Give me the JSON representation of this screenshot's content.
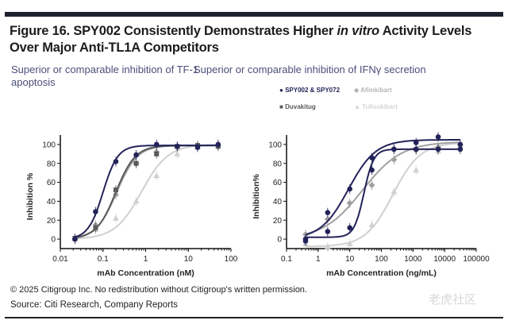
{
  "header": {
    "title_pre": "Figure 16. SPY002 Consistently Demonstrates Higher ",
    "title_italic": "in vitro",
    "title_post": " Activity Levels",
    "title_line2": "Over Major Anti-TL1A Competitors"
  },
  "subtitles": {
    "left_line1": "Superior or comparable inhibition of TF-1",
    "left_line2": "apoptosis",
    "right": "Superior or comparable inhibition of IFNγ secretion"
  },
  "legend": [
    {
      "label": "SPY002 & SPY072",
      "color": "#23235a",
      "marker": "circle"
    },
    {
      "label": "Afimkibart",
      "color": "#a0a0a0",
      "marker": "diamond"
    },
    {
      "label": "Duvakitug",
      "color": "#5a5a5a",
      "marker": "square"
    },
    {
      "label": "Tulisokibart",
      "color": "#d0d0d0",
      "marker": "triangle"
    }
  ],
  "footer": {
    "copyright": "© 2025 Citigroup Inc. No redistribution without Citigroup's written permission.",
    "source": "Source: Citi Research, Company Reports"
  },
  "watermark": "老虎社区",
  "chart_data": [
    {
      "type": "scatter",
      "xscale": "log",
      "xlim": [
        0.01,
        100
      ],
      "ylim": [
        -10,
        110
      ],
      "xlabel": "mAb Concentration (nM)",
      "ylabel": "Inhibition %",
      "xticks": [
        "0.01",
        "0.1",
        "1",
        "10",
        "100"
      ],
      "xtick_values": [
        0.01,
        0.1,
        1,
        10,
        100
      ],
      "yticks": [
        0,
        20,
        40,
        60,
        80,
        100
      ],
      "x": [
        0.022,
        0.067,
        0.2,
        0.6,
        1.8,
        5.5,
        16.5,
        50
      ],
      "series": [
        {
          "name": "SPY002",
          "color": "#23235a",
          "marker": "circle",
          "values": [
            0,
            29,
            82,
            89,
            100,
            98,
            97,
            100
          ],
          "fit": {
            "ec50": 0.1,
            "hill": 2.5,
            "top": 99,
            "bottom": 0
          }
        },
        {
          "name": "Duvakitug",
          "color": "#5a5a5a",
          "marker": "square",
          "values": [
            1,
            12,
            52,
            80,
            90,
            98,
            99,
            98
          ],
          "fit": {
            "ec50": 0.2,
            "hill": 1.9,
            "top": 99,
            "bottom": 0
          }
        },
        {
          "name": "Afimkibart",
          "color": "#a0a0a0",
          "marker": "diamond",
          "values": [
            0,
            15,
            47,
            80,
            92,
            97,
            98,
            99
          ],
          "fit": {
            "ec50": 0.21,
            "hill": 1.8,
            "top": 99,
            "bottom": 0
          }
        },
        {
          "name": "Tulisokibart",
          "color": "#d0d0d0",
          "marker": "triangle",
          "values": [
            0,
            10,
            22,
            40,
            67,
            90,
            97,
            99
          ],
          "fit": {
            "ec50": 0.8,
            "hill": 1.4,
            "top": 100,
            "bottom": 0
          }
        }
      ]
    },
    {
      "type": "scatter",
      "xscale": "log",
      "xlim": [
        0.1,
        100000
      ],
      "ylim": [
        -10,
        110
      ],
      "xlabel": "mAb Concentration (ng/mL)",
      "ylabel": "Inhibition%",
      "xticks": [
        "0.1",
        "1",
        "10",
        "100",
        "1000",
        "10000",
        "100000"
      ],
      "xtick_values": [
        0.1,
        1,
        10,
        100,
        1000,
        10000,
        100000
      ],
      "yticks": [
        0,
        20,
        40,
        60,
        80,
        100
      ],
      "x": [
        0.4,
        2,
        10,
        50,
        250,
        1250,
        6250,
        31250
      ],
      "series": [
        {
          "name": "SPY002",
          "color": "#23235a",
          "marker": "circle",
          "values": [
            0,
            28,
            53,
            86,
            95,
            102,
            108,
            100
          ],
          "fit": {
            "ec50": 9,
            "hill": 1.0,
            "top": 105,
            "bottom": 0
          }
        },
        {
          "name": "SPY072",
          "color": "#23235a",
          "marker": "circle",
          "values": [
            -2,
            8,
            12,
            73,
            95,
            95,
            95,
            95
          ],
          "fit": {
            "ec50": 28,
            "hill": 2.8,
            "top": 95,
            "bottom": 2
          }
        },
        {
          "name": "Afimkibart",
          "color": "#a0a0a0",
          "marker": "diamond",
          "values": [
            5,
            21,
            38,
            57,
            84,
            94,
            97,
            100
          ],
          "fit": {
            "ec50": 25,
            "hill": 0.7,
            "top": 103,
            "bottom": 0
          }
        },
        {
          "name": "Tulisokibart",
          "color": "#d0d0d0",
          "marker": "triangle",
          "values": [
            -5,
            -8,
            -5,
            15,
            50,
            73,
            93,
            99
          ],
          "fit": {
            "ec50": 230,
            "hill": 1.0,
            "top": 102,
            "bottom": -8
          }
        }
      ]
    }
  ]
}
